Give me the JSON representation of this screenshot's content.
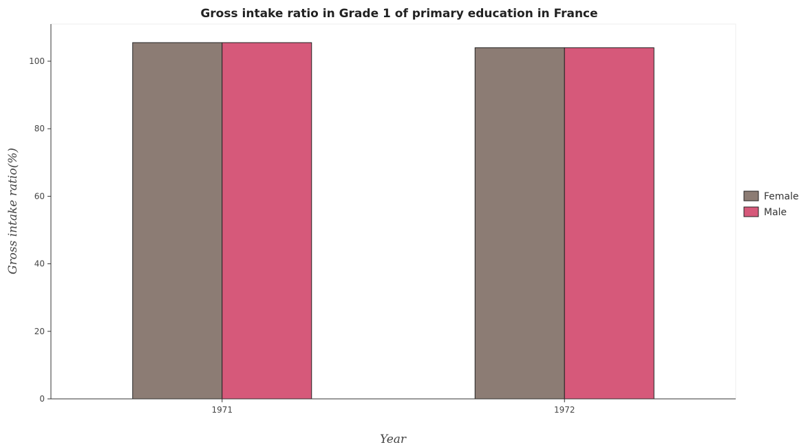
{
  "chart_data": {
    "type": "bar",
    "title": "Gross intake ratio in Grade 1 of primary education in France",
    "xlabel": "Year",
    "ylabel": "Gross intake ratio(%)",
    "categories": [
      "1971",
      "1972"
    ],
    "series": [
      {
        "name": "Female",
        "color": "#8c7c74",
        "values": [
          105.5,
          104.0
        ]
      },
      {
        "name": "Male",
        "color": "#d6597a",
        "values": [
          105.5,
          104.0
        ]
      }
    ],
    "ylim": [
      0,
      111
    ],
    "yticks": [
      0,
      20,
      40,
      60,
      80,
      100
    ],
    "grid": false,
    "legend_position": "right"
  }
}
